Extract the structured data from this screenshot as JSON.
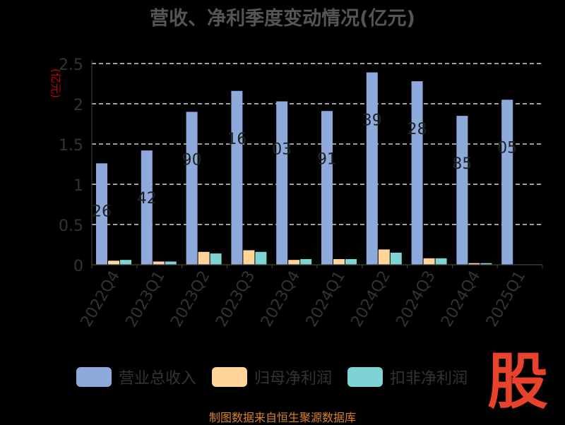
{
  "title": "营收、净利季度变动情况(亿元)",
  "chart_data": {
    "type": "bar",
    "ylabel": "(亿元)",
    "ylim": [
      0,
      2.5
    ],
    "yticks": [
      "0",
      "0.5",
      "1",
      "1.5",
      "2",
      "2.5"
    ],
    "grid": true,
    "legend_position": "bottom",
    "categories": [
      "2022Q4",
      "2023Q1",
      "2023Q2",
      "2023Q3",
      "2023Q4",
      "2024Q1",
      "2024Q2",
      "2024Q3",
      "2024Q4",
      "2025Q1"
    ],
    "series": [
      {
        "name": "营业总收入",
        "color": "#8eaadb",
        "values": [
          1.26,
          1.42,
          1.9,
          2.16,
          2.03,
          1.91,
          2.39,
          2.28,
          1.85,
          2.05
        ]
      },
      {
        "name": "归母净利润",
        "color": "#ffd59a",
        "values": [
          0.05,
          0.04,
          0.16,
          0.18,
          0.06,
          0.07,
          0.19,
          0.08,
          0.02,
          0.0
        ]
      },
      {
        "name": "扣非净利润",
        "color": "#7fd3d5",
        "values": [
          0.06,
          0.04,
          0.14,
          0.16,
          0.07,
          0.07,
          0.15,
          0.08,
          0.02,
          0.0
        ]
      }
    ],
    "data_labels": [
      "26",
      "42",
      "90",
      "16",
      "03",
      "91",
      "39",
      "28",
      "85",
      "05"
    ]
  },
  "watermark": "股",
  "source": "制图数据来自恒生聚源数据库"
}
